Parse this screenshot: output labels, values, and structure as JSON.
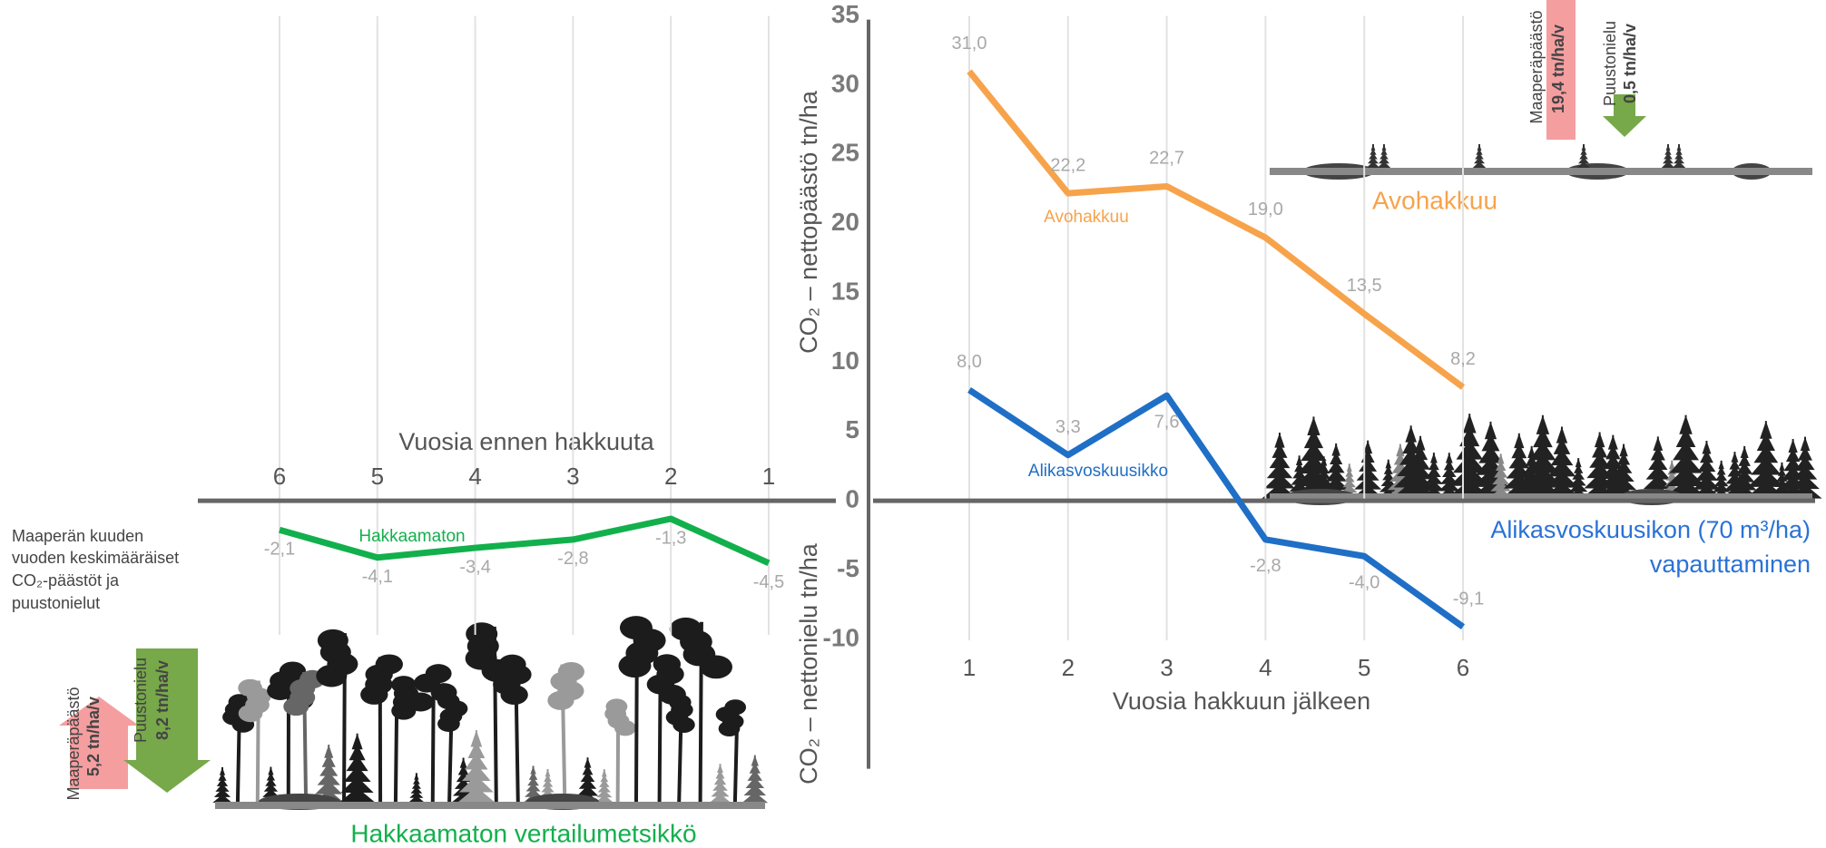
{
  "chart_data": [
    {
      "type": "line",
      "x_label": "Vuosia ennen hakkuuta",
      "categories": [
        "6",
        "5",
        "4",
        "3",
        "2",
        "1"
      ],
      "ylim": [
        -20,
        35
      ],
      "series": [
        {
          "name": "Hakkaamaton",
          "color": "#12b04c",
          "values": [
            -2.1,
            -4.1,
            -3.4,
            -2.8,
            -1.3,
            -4.5
          ],
          "value_labels": [
            "-2,1",
            "-4,1",
            "-3,4",
            "-2,8",
            "-1,3",
            "-4,5"
          ]
        }
      ]
    },
    {
      "type": "line",
      "x_label": "Vuosia hakkuun jälkeen",
      "y_label_upper": "CO₂ – nettopäästö tn/ha",
      "y_label_lower": "CO₂ – nettonielu tn/ha",
      "categories": [
        "1",
        "2",
        "3",
        "4",
        "5",
        "6"
      ],
      "ylim": [
        -20,
        35
      ],
      "yticks": [
        35,
        30,
        25,
        20,
        15,
        10,
        5,
        0,
        -5,
        -10
      ],
      "series": [
        {
          "name": "Avohakkuu",
          "color": "#f7a34b",
          "values": [
            31.0,
            22.2,
            22.7,
            19.0,
            13.5,
            8.2
          ],
          "value_labels": [
            "31,0",
            "22,2",
            "22,7",
            "19,0",
            "13,5",
            "8,2"
          ]
        },
        {
          "name": "Alikasvoskuusikko",
          "color": "#1f6fc6",
          "values": [
            8.0,
            3.3,
            7.6,
            -2.8,
            -4.0,
            -9.1
          ],
          "value_labels": [
            "8,0",
            "3,3",
            "7,6",
            "-2,8",
            "-4,0",
            "-9,1"
          ]
        }
      ]
    }
  ],
  "annotations": {
    "clearcut_label": "Avohakkuu",
    "release_label": [
      "Alikasvoskuusikon (70 m³/ha)",
      "vapauttaminen"
    ],
    "control_label": "Hakkaamaton vertailumetsikkö",
    "note": [
      "Maaperän kuuden",
      "vuoden keskimääräiset",
      "CO₂-päästöt ja",
      "puustonielut"
    ],
    "control_soil": {
      "name": "Maaperäpäästö",
      "value": "5,2 tn/ha/v"
    },
    "control_trees": {
      "name": "Puustonielu",
      "value": "8,2 tn/ha/v"
    },
    "clearcut_soil": {
      "name": "Maaperäpäästö",
      "value": "19,4 tn/ha/v"
    },
    "clearcut_trees": {
      "name": "Puustonielu",
      "value": "0,5 tn/ha/v"
    }
  }
}
